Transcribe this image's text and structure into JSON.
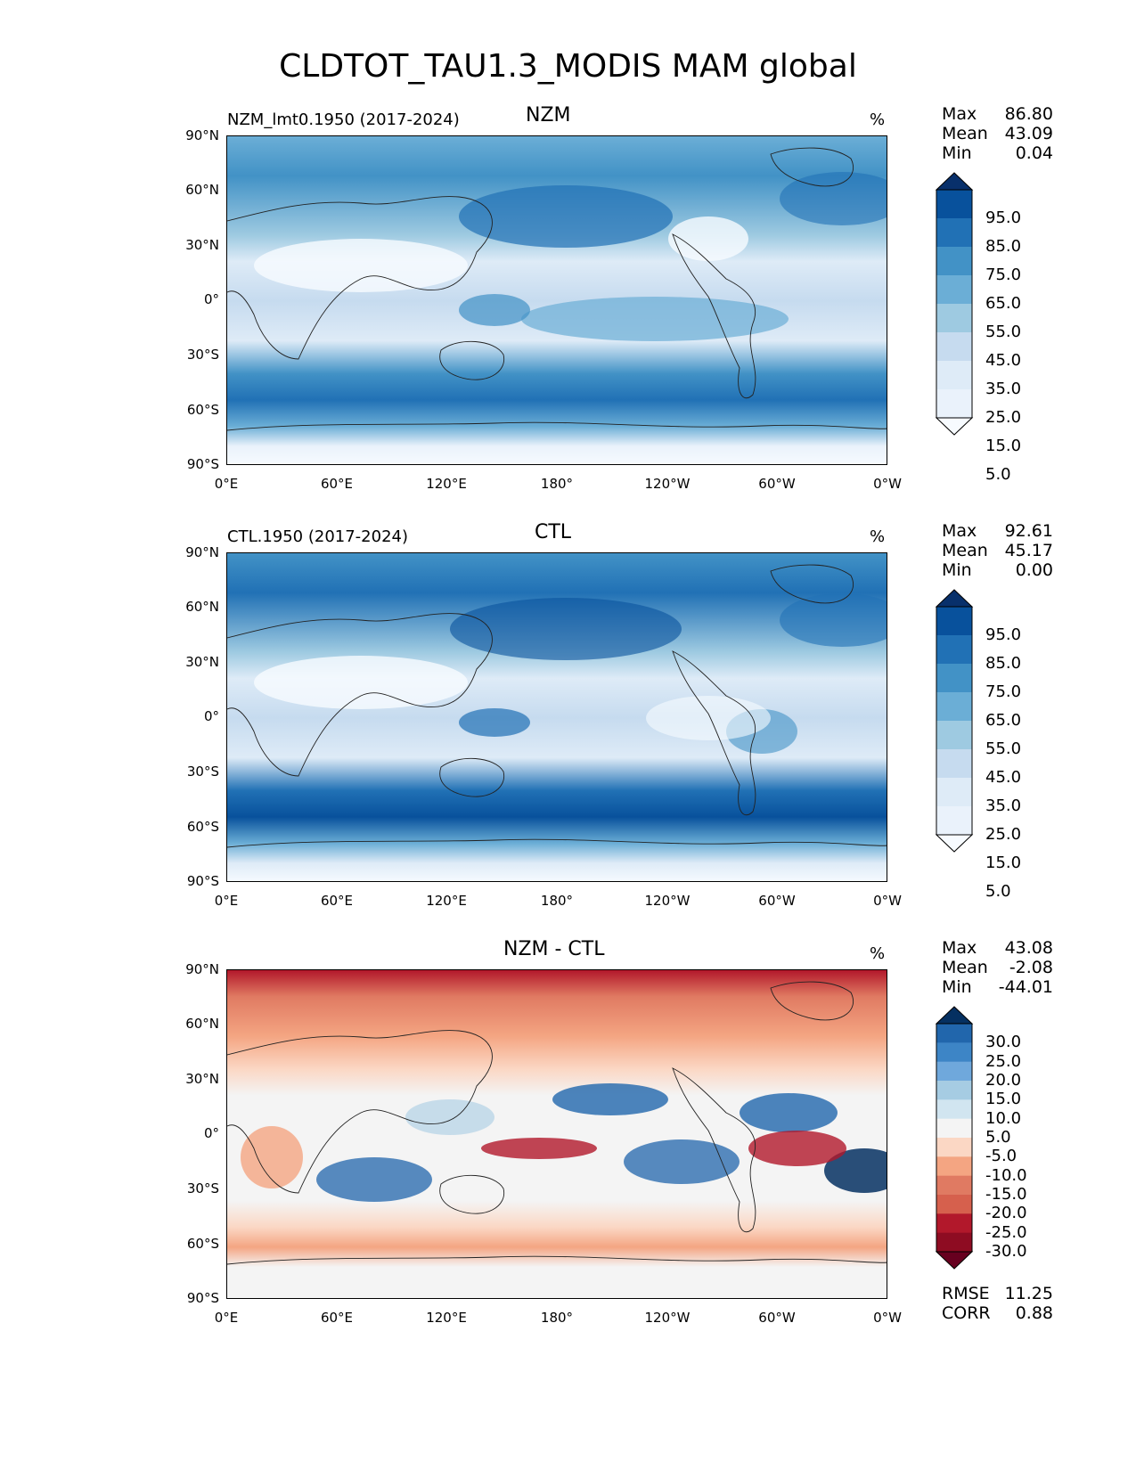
{
  "title": "CLDTOT_TAU1.3_MODIS MAM global",
  "lat_labels": [
    "90°N",
    "60°N",
    "30°N",
    "0°",
    "30°S",
    "60°S",
    "90°S"
  ],
  "lon_labels": [
    "0°E",
    "60°E",
    "120°E",
    "180°",
    "120°W",
    "60°W",
    "0°W"
  ],
  "units": "%",
  "panels": [
    {
      "name": "NZM",
      "subtitle": "NZM_lmt0.1950 (2017-2024)",
      "stats": {
        "max_label": "Max",
        "max": "86.80",
        "mean_label": "Mean",
        "mean": "43.09",
        "min_label": "Min",
        "min": "0.04"
      },
      "colorbar": {
        "labels": [
          "95.0",
          "85.0",
          "75.0",
          "65.0",
          "55.0",
          "45.0",
          "35.0",
          "25.0",
          "15.0",
          "5.0"
        ],
        "colors": [
          "#08306b",
          "#08519c",
          "#2171b5",
          "#4292c6",
          "#6baed6",
          "#9ecae1",
          "#c6dbef",
          "#deebf7",
          "#eaf2fb",
          "#f7fbff"
        ]
      }
    },
    {
      "name": "CTL",
      "subtitle": "CTL.1950 (2017-2024)",
      "stats": {
        "max_label": "Max",
        "max": "92.61",
        "mean_label": "Mean",
        "mean": "45.17",
        "min_label": "Min",
        "min": "0.00"
      },
      "colorbar": {
        "labels": [
          "95.0",
          "85.0",
          "75.0",
          "65.0",
          "55.0",
          "45.0",
          "35.0",
          "25.0",
          "15.0",
          "5.0"
        ],
        "colors": [
          "#08306b",
          "#08519c",
          "#2171b5",
          "#4292c6",
          "#6baed6",
          "#9ecae1",
          "#c6dbef",
          "#deebf7",
          "#eaf2fb",
          "#f7fbff"
        ]
      }
    },
    {
      "name": "NZM - CTL",
      "subtitle": "",
      "stats": {
        "max_label": "Max",
        "max": "43.08",
        "mean_label": "Mean",
        "mean": "-2.08",
        "min_label": "Min",
        "min": "-44.01"
      },
      "colorbar": {
        "labels": [
          "30.0",
          "25.0",
          "20.0",
          "15.0",
          "10.0",
          "5.0",
          "-5.0",
          "-10.0",
          "-15.0",
          "-20.0",
          "-25.0",
          "-30.0"
        ],
        "colors": [
          "#053061",
          "#2166ac",
          "#3d85c6",
          "#6fa8dc",
          "#a6cce3",
          "#d1e5f0",
          "#f4f4f4",
          "#fbd7c4",
          "#f4a582",
          "#e07a62",
          "#d6604d",
          "#b2182b",
          "#8e0c22",
          "#67001f"
        ]
      },
      "footer": {
        "rmse_label": "RMSE",
        "rmse": "11.25",
        "corr_label": "CORR",
        "corr": "0.88"
      }
    }
  ]
}
